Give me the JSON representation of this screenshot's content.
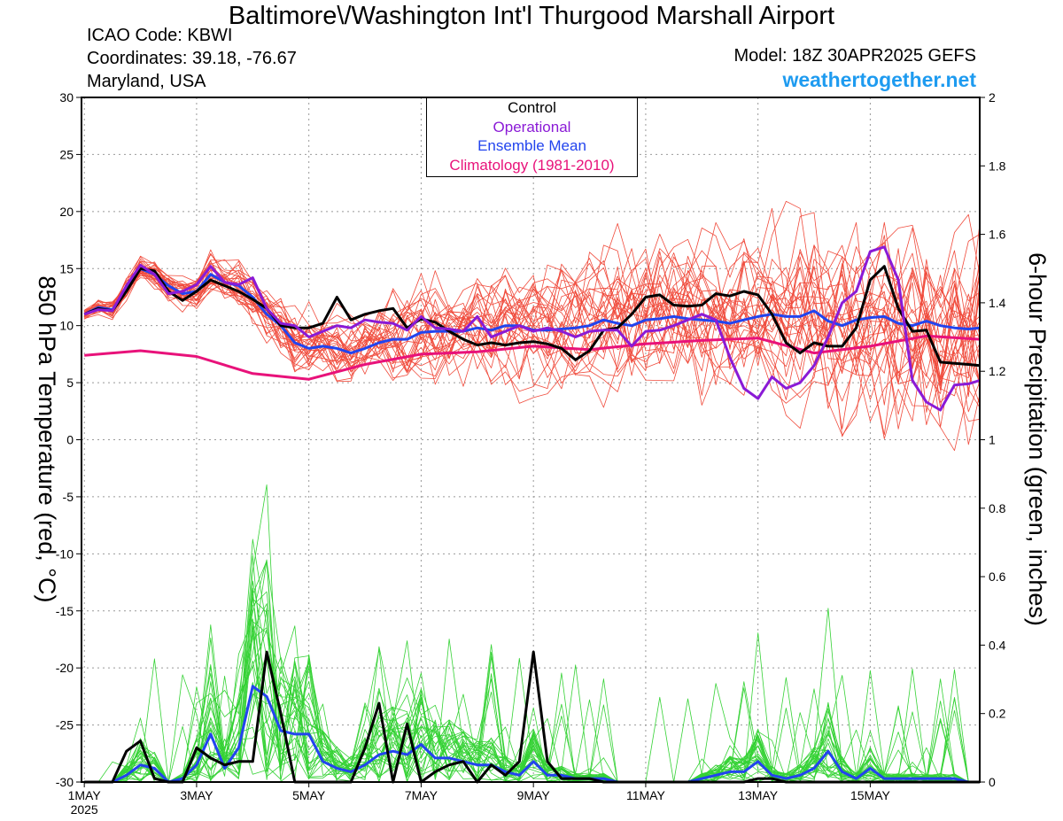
{
  "header": {
    "title": "Baltimore\\/Washington Int'l Thurgood Marshall Airport",
    "icao": "ICAO Code: KBWI",
    "coordinates": "Coordinates: 39.18, -76.67",
    "region": "Maryland, USA",
    "model": "Model: 18Z 30APR2025 GEFS",
    "site": "weathertogether.net"
  },
  "colors": {
    "members_temp": "#f04b3c",
    "members_precip": "#35d235",
    "control": "#000000",
    "operational": "#8a1ad6",
    "ensemble_mean": "#2244ee",
    "climatology": "#e8127a",
    "site": "#1e9bf0"
  },
  "legend": [
    {
      "label": "Control",
      "color": "#000000"
    },
    {
      "label": "Operational",
      "color": "#8a1ad6"
    },
    {
      "label": "Ensemble Mean",
      "color": "#2244ee"
    },
    {
      "label": "Climatology (1981-2010)",
      "color": "#e8127a"
    }
  ],
  "chart_data": {
    "type": "line",
    "ylabel_left": "850 hPa Temperature (red, °C)",
    "ylabel_right": "6-hour Precipitation (green, inches)",
    "x_ticks": [
      {
        "day": 1,
        "label": "1MAY",
        "sublabel": "2025"
      },
      {
        "day": 3,
        "label": "3MAY"
      },
      {
        "day": 5,
        "label": "5MAY"
      },
      {
        "day": 7,
        "label": "7MAY"
      },
      {
        "day": 9,
        "label": "9MAY"
      },
      {
        "day": 11,
        "label": "11MAY"
      },
      {
        "day": 13,
        "label": "13MAY"
      },
      {
        "day": 15,
        "label": "15MAY"
      }
    ],
    "x_range_days": [
      0.95,
      16.95
    ],
    "y_left": {
      "min": -30,
      "max": 30,
      "ticks": [
        30,
        25,
        20,
        15,
        10,
        5,
        0,
        -5,
        -10,
        -15,
        -20,
        -25,
        -30
      ]
    },
    "y_right": {
      "min": 0,
      "max": 2,
      "ticks": [
        "2",
        "1.8",
        "1.6",
        "1.4",
        "1.2",
        "1",
        "0.8",
        "0.6",
        "0.4",
        "0.2",
        "0"
      ]
    },
    "grid": true,
    "legend_position": "top-center",
    "temperature_series": [
      {
        "name": "Control",
        "x": [
          1,
          1.25,
          1.5,
          1.75,
          2,
          2.25,
          2.5,
          2.75,
          3,
          3.25,
          3.5,
          3.75,
          4,
          4.25,
          4.5,
          4.75,
          5,
          5.25,
          5.5,
          5.75,
          6,
          6.25,
          6.5,
          6.75,
          7,
          7.25,
          7.5,
          7.75,
          8,
          8.25,
          8.5,
          8.75,
          9,
          9.25,
          9.5,
          9.75,
          10,
          10.25,
          10.5,
          10.75,
          11,
          11.25,
          11.5,
          11.75,
          12,
          12.25,
          12.5,
          12.75,
          13,
          13.25,
          13.5,
          13.75,
          14,
          14.25,
          14.5,
          14.75,
          15,
          15.25,
          15.5,
          15.75,
          16,
          16.25,
          16.5,
          16.75,
          16.95
        ],
        "y": [
          11,
          11.5,
          11.3,
          13,
          15,
          14.8,
          13,
          12.2,
          13,
          14,
          13.5,
          13,
          12.3,
          11.5,
          10,
          9.8,
          9.8,
          10.2,
          12.5,
          10.5,
          11,
          11.3,
          11.5,
          9.8,
          10.6,
          10.3,
          9.5,
          8.8,
          8.3,
          8.5,
          8.3,
          8.5,
          8.6,
          8.4,
          8,
          7,
          7.8,
          9.6,
          9.8,
          11,
          12.5,
          12.7,
          11.8,
          11.7,
          11.8,
          12.8,
          12.6,
          13,
          12.7,
          11,
          8.5,
          7.6,
          8.5,
          8.2,
          8.2,
          9.8,
          14,
          15.2,
          11.5,
          9.5,
          9.6,
          6.8,
          6.7,
          6.6,
          6.5
        ]
      },
      {
        "name": "Operational",
        "x": [
          1,
          1.25,
          1.5,
          1.75,
          2,
          2.25,
          2.5,
          2.75,
          3,
          3.25,
          3.5,
          3.75,
          4,
          4.25,
          4.5,
          4.75,
          5,
          5.25,
          5.5,
          5.75,
          6,
          6.25,
          6.5,
          6.75,
          7,
          7.25,
          7.5,
          7.75,
          8,
          8.25,
          8.5,
          8.75,
          9,
          9.25,
          9.5,
          9.75,
          10,
          10.25,
          10.5,
          10.75,
          11,
          11.25,
          11.5,
          11.75,
          12,
          12.25,
          12.5,
          12.75,
          13,
          13.25,
          13.5,
          13.75,
          14,
          14.25,
          14.5,
          14.75,
          15,
          15.25,
          15.5,
          15.75,
          16,
          16.25,
          16.5,
          16.75,
          16.95
        ],
        "y": [
          11,
          11.4,
          11.3,
          13.5,
          15.3,
          14.5,
          12.8,
          13,
          13.6,
          15.2,
          13.8,
          13.6,
          14.2,
          11.5,
          10.2,
          10,
          9,
          9.5,
          10,
          9.8,
          10.5,
          10.3,
          10.2,
          9.6,
          10.8,
          9.8,
          9.7,
          9.5,
          10.8,
          9,
          9.5,
          10,
          9.5,
          9.8,
          9.5,
          9,
          9.5,
          9.6,
          9.6,
          8.2,
          9.5,
          9.6,
          10,
          10.5,
          11,
          10.5,
          7.2,
          4.5,
          3.6,
          5.5,
          4.5,
          5,
          6.5,
          9,
          12,
          13,
          16.5,
          16.9,
          14,
          5.2,
          3.3,
          2.6,
          4.8,
          4.9,
          5.2
        ]
      },
      {
        "name": "Ensemble Mean",
        "x": [
          1,
          1.25,
          1.5,
          1.75,
          2,
          2.25,
          2.5,
          2.75,
          3,
          3.25,
          3.5,
          3.75,
          4,
          4.25,
          4.5,
          4.75,
          5,
          5.25,
          5.5,
          5.75,
          6,
          6.25,
          6.5,
          6.75,
          7,
          7.25,
          7.5,
          7.75,
          8,
          8.25,
          8.5,
          8.75,
          9,
          9.25,
          9.5,
          9.75,
          10,
          10.25,
          10.5,
          10.75,
          11,
          11.25,
          11.5,
          11.75,
          12,
          12.25,
          12.5,
          12.75,
          13,
          13.25,
          13.5,
          13.75,
          14,
          14.25,
          14.5,
          14.75,
          15,
          15.25,
          15.5,
          15.75,
          16,
          16.25,
          16.5,
          16.75,
          16.95
        ],
        "y": [
          11,
          11.6,
          11.4,
          13.2,
          15,
          14.5,
          13.5,
          12.8,
          13,
          14.5,
          13.8,
          13.5,
          12.5,
          11,
          10,
          8.5,
          8,
          8.2,
          8,
          7.6,
          8,
          8.5,
          8.8,
          8.8,
          9.4,
          9.5,
          9.5,
          9.5,
          9.8,
          9.6,
          10,
          10,
          9.6,
          9.6,
          9.7,
          9.8,
          10,
          10.5,
          10.2,
          10,
          10.5,
          10.6,
          10.8,
          10.6,
          10.5,
          10.4,
          10.2,
          10.5,
          10.8,
          11,
          10.8,
          10.8,
          11.3,
          10.4,
          10,
          10.5,
          10.7,
          10.8,
          10.2,
          10,
          10.4,
          10,
          9.8,
          9.7,
          9.8
        ]
      },
      {
        "name": "Climatology (1981-2010)",
        "x": [
          1,
          2,
          3,
          4,
          5,
          6,
          7,
          8,
          9,
          10,
          11,
          12,
          13,
          14,
          15,
          16,
          16.95
        ],
        "y": [
          7.4,
          7.8,
          7.3,
          5.8,
          5.3,
          6.6,
          7.5,
          7.7,
          8.2,
          7.9,
          8.4,
          8.7,
          8.9,
          7.6,
          8.2,
          9.1,
          8.8
        ]
      }
    ],
    "temperature_members_count": 30,
    "precip_series": [
      {
        "name": "Control",
        "x": [
          1,
          1.25,
          1.5,
          1.75,
          2,
          2.25,
          2.5,
          2.75,
          3,
          3.25,
          3.5,
          3.75,
          4,
          4.25,
          4.5,
          4.75,
          5,
          5.25,
          5.5,
          5.75,
          6,
          6.25,
          6.5,
          6.75,
          7,
          7.25,
          7.5,
          7.75,
          8,
          8.25,
          8.5,
          8.75,
          9,
          9.25,
          9.5,
          9.75,
          10,
          10.25,
          10.5,
          10.75,
          11,
          11.25,
          11.5,
          11.75,
          12,
          12.25,
          12.5,
          12.75,
          13,
          13.25,
          13.5,
          13.75,
          14,
          14.25,
          14.5,
          14.75,
          15,
          15.25,
          15.5,
          15.75,
          16,
          16.25,
          16.5,
          16.75,
          16.95
        ],
        "y": [
          0,
          0,
          0,
          0.09,
          0.12,
          0.01,
          0,
          0,
          0.1,
          0.07,
          0.05,
          0.06,
          0.06,
          0.38,
          0.2,
          0,
          0,
          0,
          0,
          0,
          0.1,
          0.23,
          0,
          0.17,
          0,
          0.03,
          0.05,
          0.06,
          0,
          0.05,
          0.02,
          0.06,
          0.38,
          0.06,
          0.01,
          0.01,
          0.01,
          0,
          0,
          0,
          0,
          0,
          0,
          0,
          0,
          0,
          0,
          0,
          0.01,
          0.01,
          0,
          0,
          0,
          0,
          0,
          0,
          0,
          0,
          0,
          0,
          0,
          0,
          0,
          0,
          0
        ]
      },
      {
        "name": "Ensemble Mean",
        "x": [
          1,
          1.25,
          1.5,
          1.75,
          2,
          2.25,
          2.5,
          2.75,
          3,
          3.25,
          3.5,
          3.75,
          4,
          4.25,
          4.5,
          4.75,
          5,
          5.25,
          5.5,
          5.75,
          6,
          6.25,
          6.5,
          6.75,
          7,
          7.25,
          7.5,
          7.75,
          8,
          8.25,
          8.5,
          8.75,
          9,
          9.25,
          9.5,
          9.75,
          10,
          10.25,
          10.5,
          10.75,
          11,
          11.25,
          11.5,
          11.75,
          12,
          12.25,
          12.5,
          12.75,
          13,
          13.25,
          13.5,
          13.75,
          14,
          14.25,
          14.5,
          14.75,
          15,
          15.25,
          15.5,
          15.75,
          16,
          16.25,
          16.5,
          16.75,
          16.95
        ],
        "y": [
          0,
          0,
          0,
          0.02,
          0.05,
          0.04,
          0,
          0.01,
          0.05,
          0.14,
          0.04,
          0.1,
          0.28,
          0.25,
          0.15,
          0.14,
          0.14,
          0.06,
          0.04,
          0.03,
          0.05,
          0.08,
          0.09,
          0.08,
          0.11,
          0.07,
          0.07,
          0.06,
          0.05,
          0.05,
          0.03,
          0.02,
          0.06,
          0.02,
          0.02,
          0.01,
          0.01,
          0.01,
          0,
          0,
          0,
          0,
          0,
          0,
          0.01,
          0.02,
          0.03,
          0.03,
          0.06,
          0.02,
          0.01,
          0.02,
          0.04,
          0.09,
          0.03,
          0.01,
          0.04,
          0.01,
          0.01,
          0.01,
          0.01,
          0.01,
          0.01,
          0,
          0
        ]
      }
    ],
    "precip_members_count": 30
  }
}
